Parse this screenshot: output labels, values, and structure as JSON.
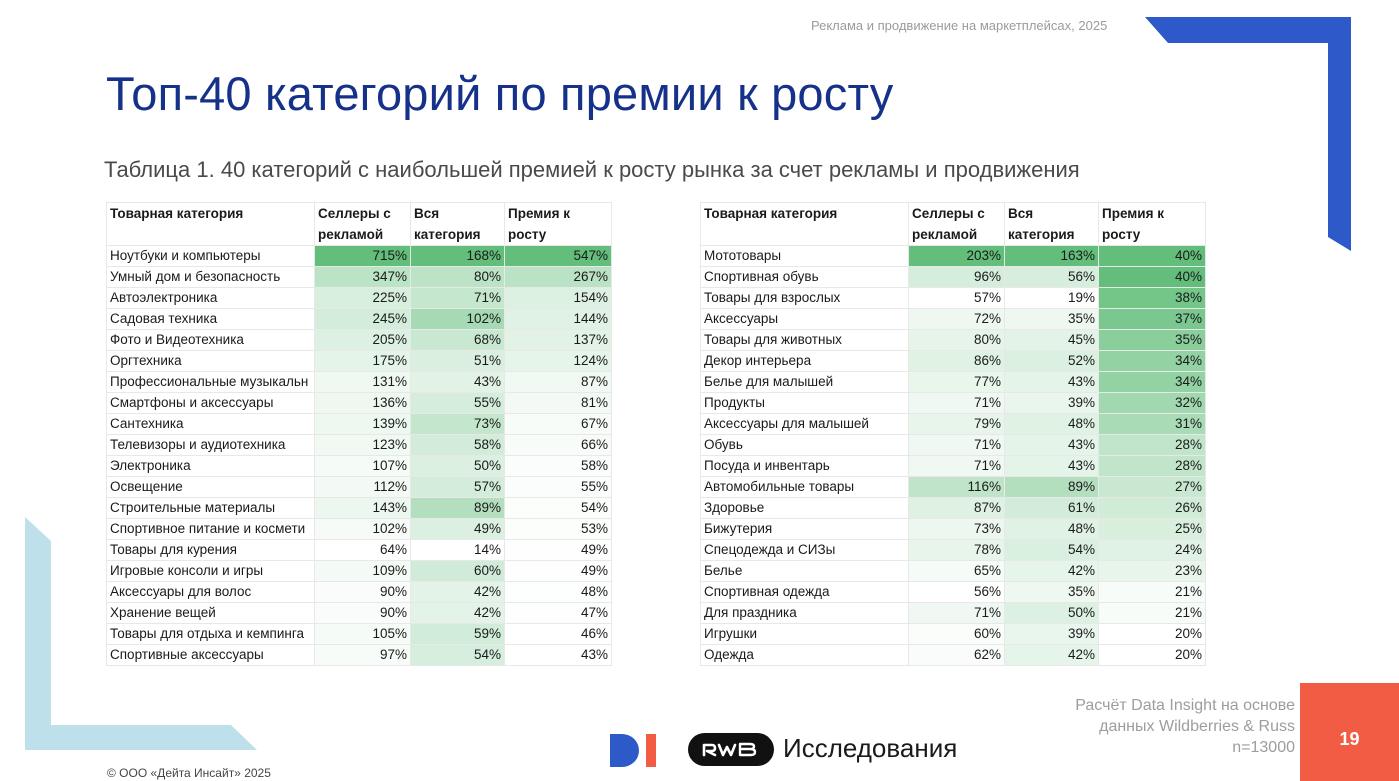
{
  "header": {
    "top_note": "Реклама и продвижение на маркетплейсах, 2025",
    "title": "Топ-40 категорий по премии к росту",
    "subtitle": "Таблица 1. 40 категорий с наибольшей премией к росту рынка за счет рекламы и продвижения"
  },
  "colors": {
    "title": "#16318a",
    "accent_blue": "#2e59c9",
    "light_blue": "#bde0eb",
    "badge": "#f25c45",
    "heat_max": "#63be7b",
    "heat_min": "#ffffff"
  },
  "tables": {
    "columns": [
      "Товарная категория",
      "Селлеры с рекламой",
      "Вся категория",
      "Премия к росту"
    ],
    "left": [
      [
        "Ноутбуки и компьютеры",
        "715%",
        "168%",
        "547%"
      ],
      [
        "Умный дом и безопасность",
        "347%",
        "80%",
        "267%"
      ],
      [
        "Автоэлектроника",
        "225%",
        "71%",
        "154%"
      ],
      [
        "Садовая техника",
        "245%",
        "102%",
        "144%"
      ],
      [
        "Фото и Видеотехника",
        "205%",
        "68%",
        "137%"
      ],
      [
        "Оргтехника",
        "175%",
        "51%",
        "124%"
      ],
      [
        "Профессиональные музыкальн",
        "131%",
        "43%",
        "87%"
      ],
      [
        "Смартфоны и аксессуары",
        "136%",
        "55%",
        "81%"
      ],
      [
        "Сантехника",
        "139%",
        "73%",
        "67%"
      ],
      [
        "Телевизоры и аудиотехника",
        "123%",
        "58%",
        "66%"
      ],
      [
        "Электроника",
        "107%",
        "50%",
        "58%"
      ],
      [
        "Освещение",
        "112%",
        "57%",
        "55%"
      ],
      [
        "Строительные материалы",
        "143%",
        "89%",
        "54%"
      ],
      [
        "Спортивное питание и космети",
        "102%",
        "49%",
        "53%"
      ],
      [
        "Товары для курения",
        "64%",
        "14%",
        "49%"
      ],
      [
        "Игровые консоли и игры",
        "109%",
        "60%",
        "49%"
      ],
      [
        "Аксессуары для волос",
        "90%",
        "42%",
        "48%"
      ],
      [
        "Хранение вещей",
        "90%",
        "42%",
        "47%"
      ],
      [
        "Товары для отдыха и кемпинга",
        "105%",
        "59%",
        "46%"
      ],
      [
        "Спортивные аксессуары",
        "97%",
        "54%",
        "43%"
      ]
    ],
    "right": [
      [
        "Мототовары",
        "203%",
        "163%",
        "40%"
      ],
      [
        "Спортивная обувь",
        "96%",
        "56%",
        "40%"
      ],
      [
        "Товары для взрослых",
        "57%",
        "19%",
        "38%"
      ],
      [
        "Аксессуары",
        "72%",
        "35%",
        "37%"
      ],
      [
        "Товары для животных",
        "80%",
        "45%",
        "35%"
      ],
      [
        "Декор интерьера",
        "86%",
        "52%",
        "34%"
      ],
      [
        "Белье для малышей",
        "77%",
        "43%",
        "34%"
      ],
      [
        "Продукты",
        "71%",
        "39%",
        "32%"
      ],
      [
        "Аксессуары для малышей",
        "79%",
        "48%",
        "31%"
      ],
      [
        "Обувь",
        "71%",
        "43%",
        "28%"
      ],
      [
        "Посуда и инвентарь",
        "71%",
        "43%",
        "28%"
      ],
      [
        "Автомобильные товары",
        "116%",
        "89%",
        "27%"
      ],
      [
        "Здоровье",
        "87%",
        "61%",
        "26%"
      ],
      [
        "Бижутерия",
        "73%",
        "48%",
        "25%"
      ],
      [
        "Спецодежда и СИЗы",
        "78%",
        "54%",
        "24%"
      ],
      [
        "Белье",
        "65%",
        "42%",
        "23%"
      ],
      [
        "Спортивная одежда",
        "56%",
        "35%",
        "21%"
      ],
      [
        "Для праздника",
        "71%",
        "50%",
        "21%"
      ],
      [
        "Игрушки",
        "60%",
        "39%",
        "20%"
      ],
      [
        "Одежда",
        "62%",
        "42%",
        "20%"
      ]
    ]
  },
  "footer": {
    "source_line1": "Расчёт Data Insight на основе",
    "source_line2": "данных Wildberries & Russ",
    "source_line3": "n=13000",
    "page_number": "19",
    "logo_text": "Исследования",
    "copyright": "© ООО «Дейта Инсайт» 2025",
    "logo_icons": [
      "di-logo-icon",
      "rwb-logo-icon"
    ]
  }
}
